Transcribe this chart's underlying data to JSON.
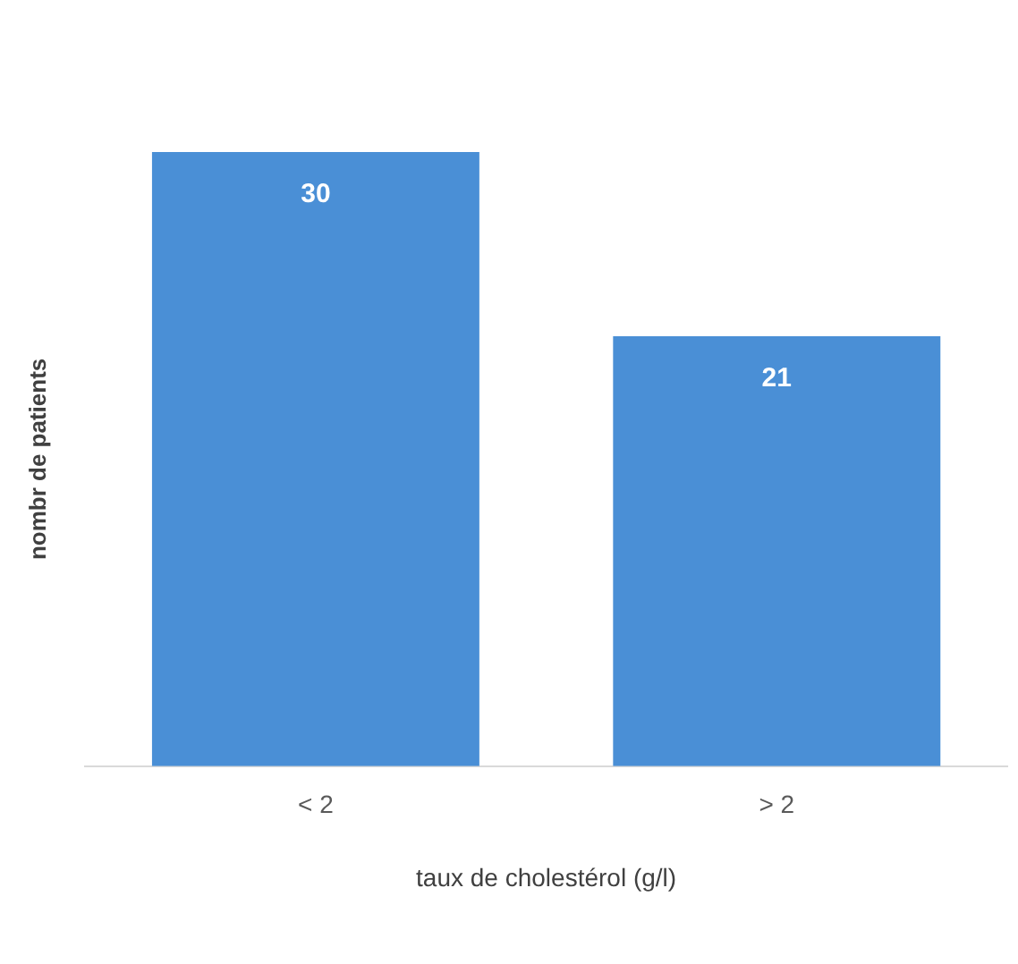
{
  "chart_data": {
    "type": "bar",
    "xlabel": "taux de cholestérol (g/l)",
    "ylabel": "nombr de patients",
    "categories": [
      "< 2",
      "> 2"
    ],
    "values": [
      30,
      21
    ],
    "color": "#4a8fd6",
    "data_labels": true,
    "tick_labels": "x",
    "grid": false,
    "legend": false
  }
}
